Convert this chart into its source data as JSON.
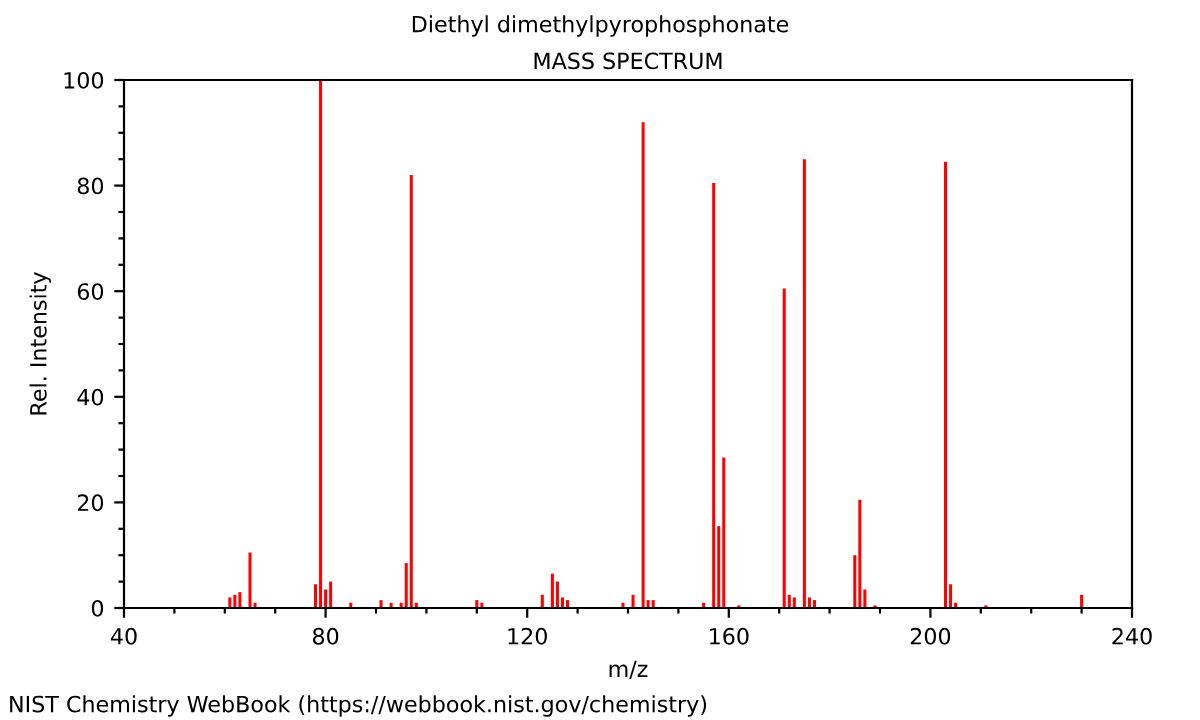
{
  "chart_data": {
    "type": "bar",
    "title": "Diethyl dimethylpyrophosphonate",
    "subtitle": "MASS SPECTRUM",
    "xlabel": "m/z",
    "ylabel": "Rel. Intensity",
    "x": [
      61,
      62,
      63,
      65,
      66,
      78,
      79,
      80,
      81,
      85,
      91,
      93,
      95,
      96,
      97,
      98,
      110,
      111,
      123,
      125,
      126,
      127,
      128,
      139,
      141,
      143,
      144,
      145,
      155,
      157,
      158,
      159,
      162,
      171,
      172,
      173,
      175,
      176,
      177,
      185,
      186,
      187,
      189,
      203,
      204,
      205,
      211,
      230
    ],
    "values": [
      2,
      2.5,
      3,
      10.5,
      1,
      4.5,
      100,
      3.5,
      5,
      1,
      1.5,
      1,
      1,
      8.5,
      82,
      1,
      1.5,
      1,
      2.5,
      6.5,
      5,
      2,
      1.5,
      1,
      2.5,
      92,
      1.5,
      1.5,
      1,
      80.5,
      15.5,
      28.5,
      0.5,
      60.5,
      2.5,
      2,
      85,
      2,
      1.5,
      10,
      20.5,
      3.5,
      0.5,
      84.5,
      4.5,
      1,
      0.5,
      2.5
    ],
    "color": "#ff0000",
    "xlim": [
      40,
      240
    ],
    "ylim": [
      0,
      100
    ],
    "xticks": [
      40,
      {
        "value": 50,
        "label": null
      },
      {
        "value": 60,
        "label": null
      },
      {
        "value": 70,
        "label": null
      },
      80,
      {
        "value": 90,
        "label": null
      },
      {
        "value": 100,
        "label": null
      },
      {
        "value": 110,
        "label": null
      },
      120,
      {
        "value": 130,
        "label": null
      },
      {
        "value": 140,
        "label": null
      },
      {
        "value": 150,
        "label": null
      },
      160,
      {
        "value": 170,
        "label": null
      },
      {
        "value": 180,
        "label": null
      },
      {
        "value": 190,
        "label": null
      },
      200,
      {
        "value": 210,
        "label": null
      },
      {
        "value": 220,
        "label": null
      },
      {
        "value": 230,
        "label": null
      },
      240
    ],
    "yticks": [
      0,
      {
        "value": 5,
        "label": null
      },
      {
        "value": 10,
        "label": null
      },
      {
        "value": 15,
        "label": null
      },
      20,
      {
        "value": 25,
        "label": null
      },
      {
        "value": 30,
        "label": null
      },
      {
        "value": 35,
        "label": null
      },
      40,
      {
        "value": 45,
        "label": null
      },
      {
        "value": 50,
        "label": null
      },
      {
        "value": 55,
        "label": null
      },
      60,
      {
        "value": 65,
        "label": null
      },
      {
        "value": 70,
        "label": null
      },
      {
        "value": 75,
        "label": null
      },
      80,
      {
        "value": 85,
        "label": null
      },
      {
        "value": 90,
        "label": null
      },
      {
        "value": 95,
        "label": null
      },
      100
    ],
    "grid": false,
    "annotations": [
      "NIST Chemistry WebBook (https://webbook.nist.gov/chemistry)"
    ]
  }
}
